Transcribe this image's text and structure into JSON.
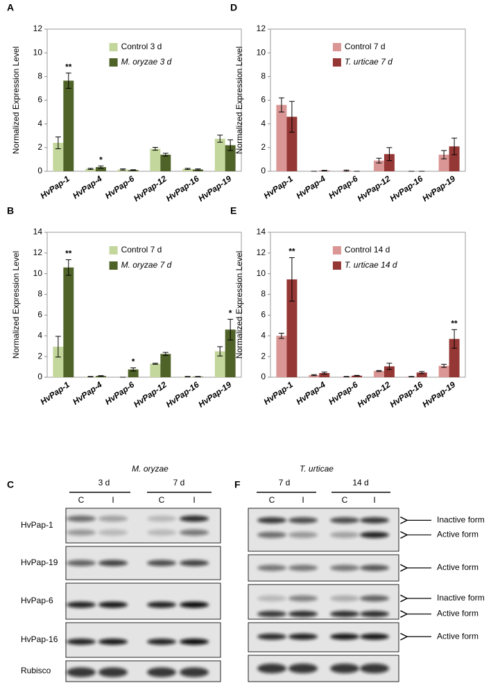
{
  "chart_data": [
    {
      "type": "bar",
      "panel": "A",
      "ylabel": "Normalized Expression Level",
      "categories": [
        "HvPap-1",
        "HvPap-4",
        "HvPap-6",
        "HvPap-12",
        "HvPap-16",
        "HvPap-19"
      ],
      "series": [
        {
          "name": "Control 3 d",
          "color": "#c3d69b",
          "values": [
            2.4,
            0.2,
            0.15,
            1.9,
            0.2,
            2.75
          ],
          "errors": [
            0.5,
            0.05,
            0.05,
            0.12,
            0.05,
            0.3
          ]
        },
        {
          "name": "M. oryzae 3 d",
          "color": "#4f6228",
          "font_style": "italic",
          "values": [
            7.65,
            0.35,
            0.1,
            1.4,
            0.15,
            2.2
          ],
          "errors": [
            0.65,
            0.1,
            0.03,
            0.12,
            0.05,
            0.45
          ],
          "significance": [
            "**",
            "*",
            null,
            null,
            null,
            null
          ]
        }
      ],
      "ylim": [
        0,
        12
      ],
      "yticks": [
        0,
        2,
        4,
        6,
        8,
        10,
        12
      ],
      "legend": "top"
    },
    {
      "type": "bar",
      "panel": "B",
      "ylabel": "Normalized Expression Level",
      "categories": [
        "HvPap-1",
        "HvPap-4",
        "HvPap-6",
        "HvPap-12",
        "HvPap-16",
        "HvPap-19"
      ],
      "series": [
        {
          "name": "Control 7 d",
          "color": "#c3d69b",
          "values": [
            2.95,
            0.05,
            0.0,
            1.3,
            0.05,
            2.5
          ],
          "errors": [
            1.0,
            0.02,
            0.0,
            0.05,
            0.02,
            0.45
          ]
        },
        {
          "name": "M. oryzae 7 d",
          "color": "#4f6228",
          "font_style": "italic",
          "values": [
            10.6,
            0.12,
            0.75,
            2.25,
            0.05,
            4.6
          ],
          "errors": [
            0.75,
            0.03,
            0.15,
            0.15,
            0.02,
            1.0
          ],
          "significance": [
            "**",
            null,
            "*",
            null,
            null,
            "*"
          ]
        }
      ],
      "ylim": [
        0,
        14
      ],
      "yticks": [
        0,
        2,
        4,
        6,
        8,
        10,
        12,
        14
      ],
      "legend": "top"
    },
    {
      "type": "bar",
      "panel": "D",
      "ylabel": "Normalized Expression Level",
      "categories": [
        "HvPap-1",
        "HvPap-4",
        "HvPap-6",
        "HvPap-12",
        "HvPap-16",
        "HvPap-19"
      ],
      "series": [
        {
          "name": "Control 7 d",
          "color": "#d99694",
          "values": [
            5.6,
            0.0,
            0.05,
            0.9,
            0.0,
            1.4
          ],
          "errors": [
            0.6,
            0.0,
            0.05,
            0.2,
            0.0,
            0.35
          ]
        },
        {
          "name": "T. urticae 7 d",
          "color": "#953735",
          "font_style": "italic",
          "values": [
            4.6,
            0.05,
            0.0,
            1.45,
            0.0,
            2.1
          ],
          "errors": [
            1.3,
            0.03,
            0.0,
            0.55,
            0.0,
            0.7
          ]
        }
      ],
      "ylim": [
        0,
        12
      ],
      "yticks": [
        0,
        2,
        4,
        6,
        8,
        10,
        12
      ],
      "legend": "top"
    },
    {
      "type": "bar",
      "panel": "E",
      "ylabel": "Normalized Expression Level",
      "categories": [
        "HvPap-1",
        "HvPap-4",
        "HvPap-6",
        "HvPap-12",
        "HvPap-16",
        "HvPap-19"
      ],
      "series": [
        {
          "name": "Control 14 d",
          "color": "#d99694",
          "values": [
            4.0,
            0.2,
            0.05,
            0.6,
            0.05,
            1.1
          ],
          "errors": [
            0.25,
            0.05,
            0.02,
            0.05,
            0.02,
            0.15
          ]
        },
        {
          "name": "T. urticae 14 d",
          "color": "#953735",
          "font_style": "italic",
          "values": [
            9.45,
            0.4,
            0.15,
            1.05,
            0.45,
            3.7
          ],
          "errors": [
            2.1,
            0.1,
            0.03,
            0.3,
            0.1,
            0.9
          ],
          "significance": [
            "**",
            null,
            null,
            null,
            null,
            "**"
          ]
        }
      ],
      "ylim": [
        0,
        14
      ],
      "yticks": [
        0,
        2,
        4,
        6,
        8,
        10,
        12,
        14
      ],
      "legend": "top"
    }
  ],
  "blots": [
    {
      "panel": "C",
      "title": "M. oryzae",
      "groups": [
        "3 d",
        "7 d"
      ],
      "lanes": [
        "C",
        "I",
        "C",
        "I"
      ],
      "rows": [
        "HvPap-1",
        "HvPap-19",
        "HvPap-6",
        "HvPap-16",
        "Rubisco"
      ]
    },
    {
      "panel": "F",
      "title": "T. urticae",
      "groups": [
        "7 d",
        "14 d"
      ],
      "lanes": [
        "C",
        "I",
        "C",
        "I"
      ],
      "arrow_labels": [
        [
          "Inactive form",
          "Active form"
        ],
        [
          "Active form"
        ],
        [
          "Inactive form",
          "Active form"
        ],
        [
          "Active form"
        ]
      ]
    }
  ]
}
